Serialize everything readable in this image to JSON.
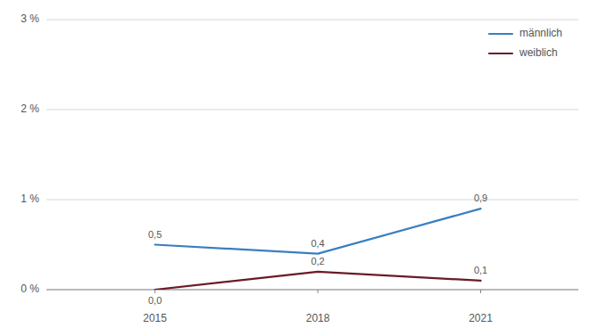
{
  "chart_data": {
    "type": "line",
    "x": [
      2015,
      2018,
      2021
    ],
    "series": [
      {
        "name": "männlich",
        "color": "#3a7fbf",
        "values": [
          0.5,
          0.4,
          0.9
        ],
        "value_labels": [
          "0,5",
          "0,4",
          "0,9"
        ]
      },
      {
        "name": "weiblich",
        "color": "#6b1a2a",
        "values": [
          0.0,
          0.2,
          0.1
        ],
        "value_labels": [
          "0,0",
          "0,2",
          "0,1"
        ]
      }
    ],
    "xlim": [
      2013.0,
      2022.8
    ],
    "xticks": [
      2015,
      2018,
      2021
    ],
    "ylim": [
      0,
      3
    ],
    "yticks": [
      {
        "value": 0,
        "label": "0 %"
      },
      {
        "value": 1,
        "label": "1 %"
      },
      {
        "value": 2,
        "label": "2 %"
      },
      {
        "value": 3,
        "label": "3 %"
      }
    ],
    "grid": true,
    "legend": "upper right",
    "data_labels": true
  }
}
